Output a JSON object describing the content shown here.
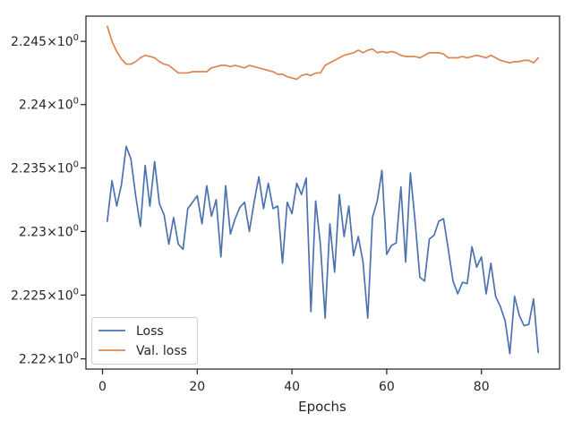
{
  "chart_data": {
    "type": "line",
    "title": "",
    "xlabel": "Epochs",
    "ylabel": "",
    "xlim": [
      -3.5,
      96.5
    ],
    "ylim": [
      2.2192,
      2.247
    ],
    "xticks": [
      0,
      20,
      40,
      60,
      80
    ],
    "xtick_labels": [
      "0",
      "20",
      "40",
      "60",
      "80"
    ],
    "yticks": [
      2.22,
      2.225,
      2.23,
      2.235,
      2.24,
      2.245
    ],
    "ytick_labels": [
      {
        "base": "2.22",
        "exp": "0"
      },
      {
        "base": "2.225",
        "exp": "0"
      },
      {
        "base": "2.23",
        "exp": "0"
      },
      {
        "base": "2.235",
        "exp": "0"
      },
      {
        "base": "2.24",
        "exp": "0"
      },
      {
        "base": "2.245",
        "exp": "0"
      }
    ],
    "times_sign": "×",
    "y_scale": "log",
    "grid": false,
    "legend_position": "lower-left",
    "x": [
      1,
      2,
      3,
      4,
      5,
      6,
      7,
      8,
      9,
      10,
      11,
      12,
      13,
      14,
      15,
      16,
      17,
      18,
      19,
      20,
      21,
      22,
      23,
      24,
      25,
      26,
      27,
      28,
      29,
      30,
      31,
      32,
      33,
      34,
      35,
      36,
      37,
      38,
      39,
      40,
      41,
      42,
      43,
      44,
      45,
      46,
      47,
      48,
      49,
      50,
      51,
      52,
      53,
      54,
      55,
      56,
      57,
      58,
      59,
      60,
      61,
      62,
      63,
      64,
      65,
      66,
      67,
      68,
      69,
      70,
      71,
      72,
      73,
      74,
      75,
      76,
      77,
      78,
      79,
      80,
      81,
      82,
      83,
      84,
      85,
      86,
      87,
      88,
      89,
      90,
      91,
      92
    ],
    "series": [
      {
        "name": "Loss",
        "color": "#4c72b0",
        "values": [
          2.2308,
          2.234,
          2.232,
          2.2337,
          2.2367,
          2.2357,
          2.2328,
          2.2304,
          2.2352,
          2.232,
          2.2355,
          2.2322,
          2.2313,
          2.229,
          2.2311,
          2.229,
          2.2286,
          2.2318,
          2.2323,
          2.2328,
          2.2306,
          2.2336,
          2.2312,
          2.2325,
          2.228,
          2.2336,
          2.2298,
          2.231,
          2.2319,
          2.2323,
          2.23,
          2.2323,
          2.2343,
          2.2318,
          2.2338,
          2.2318,
          2.232,
          2.2275,
          2.2323,
          2.2314,
          2.2338,
          2.2329,
          2.2342,
          2.2237,
          2.2324,
          2.229,
          2.2232,
          2.2306,
          2.2268,
          2.2329,
          2.2296,
          2.232,
          2.2281,
          2.2296,
          2.2276,
          2.2232,
          2.2311,
          2.2324,
          2.2348,
          2.2282,
          2.2289,
          2.2291,
          2.2335,
          2.2276,
          2.2346,
          2.2308,
          2.2264,
          2.2261,
          2.2294,
          2.2297,
          2.2308,
          2.231,
          2.2286,
          2.2261,
          2.2251,
          2.226,
          2.2259,
          2.2288,
          2.2272,
          2.228,
          2.2251,
          2.2275,
          2.2249,
          2.2241,
          2.223,
          2.2204,
          2.2249,
          2.2234,
          2.2226,
          2.2227,
          2.2247,
          2.2205
        ]
      },
      {
        "name": "Val. loss",
        "color": "#dd8452",
        "values": [
          2.2462,
          2.245,
          2.2442,
          2.2436,
          2.2432,
          2.2432,
          2.2434,
          2.2437,
          2.2439,
          2.2438,
          2.2437,
          2.2434,
          2.2432,
          2.2431,
          2.2428,
          2.2425,
          2.2425,
          2.2425,
          2.2426,
          2.2426,
          2.2426,
          2.2426,
          2.2429,
          2.243,
          2.2431,
          2.2431,
          2.243,
          2.2431,
          2.243,
          2.2429,
          2.2431,
          2.243,
          2.2429,
          2.2428,
          2.2427,
          2.2426,
          2.2424,
          2.2424,
          2.2422,
          2.2421,
          2.242,
          2.2423,
          2.2424,
          2.2423,
          2.2425,
          2.2425,
          2.2431,
          2.2433,
          2.2435,
          2.2437,
          2.2439,
          2.244,
          2.2441,
          2.2443,
          2.2441,
          2.2443,
          2.2444,
          2.2441,
          2.2442,
          2.2441,
          2.2442,
          2.2441,
          2.2439,
          2.2438,
          2.2438,
          2.2438,
          2.2437,
          2.2439,
          2.2441,
          2.2441,
          2.2441,
          2.244,
          2.2437,
          2.2437,
          2.2437,
          2.2438,
          2.2437,
          2.2438,
          2.2439,
          2.2438,
          2.2437,
          2.2439,
          2.2437,
          2.2435,
          2.2434,
          2.2433,
          2.2434,
          2.2434,
          2.2435,
          2.2435,
          2.2433,
          2.2437
        ]
      }
    ]
  }
}
